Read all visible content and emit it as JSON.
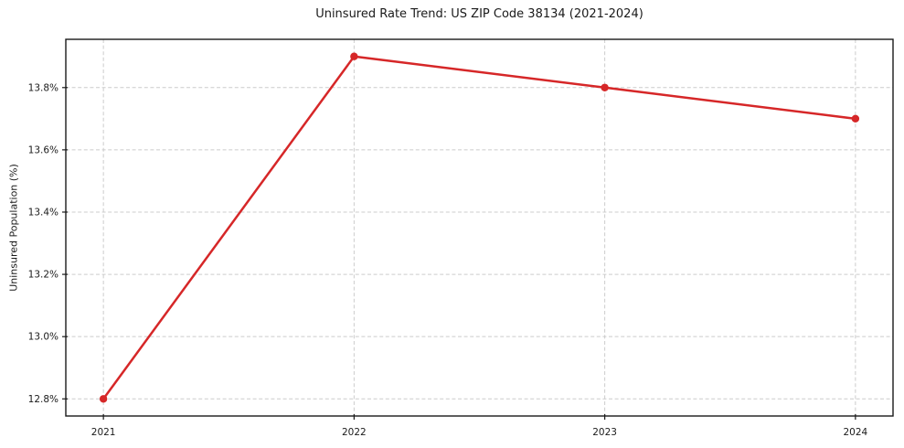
{
  "chart_data": {
    "type": "line",
    "title": "Uninsured Rate Trend: US ZIP Code 38134 (2021-2024)",
    "xlabel": "",
    "ylabel": "Uninsured Population (%)",
    "x": [
      2021,
      2022,
      2023,
      2024
    ],
    "values": [
      12.8,
      13.9,
      13.8,
      13.7
    ],
    "xtick_labels": [
      "2021",
      "2022",
      "2023",
      "2024"
    ],
    "ytick_values": [
      12.8,
      13.0,
      13.2,
      13.4,
      13.6,
      13.8
    ],
    "ytick_labels": [
      "12.8%",
      "13.0%",
      "13.2%",
      "13.4%",
      "13.6%",
      "13.8%"
    ],
    "xlim": [
      2020.85,
      2024.15
    ],
    "ylim": [
      12.745,
      13.955
    ],
    "grid": true,
    "grid_style": "dashed",
    "legend": false,
    "line_color": "#d62728",
    "marker_color": "#d62728",
    "grid_color": "#cccccc",
    "axis_color": "#1a1a1a"
  }
}
